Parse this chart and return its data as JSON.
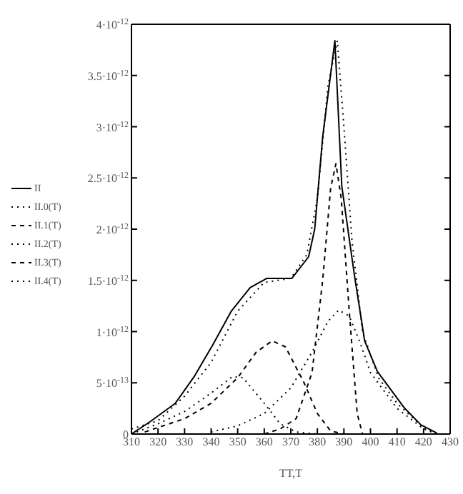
{
  "chart_data": {
    "type": "line",
    "xlabel": "TT,T",
    "legend": "left",
    "marker": "none",
    "xlim": [
      310,
      430
    ],
    "xticks": [
      310,
      320,
      330,
      340,
      350,
      360,
      370,
      380,
      390,
      400,
      410,
      420,
      430
    ],
    "ylim": [
      0,
      4e-12
    ],
    "yticks": [
      0,
      {
        "value": 5e-13,
        "label": "5·10$^{-13}$"
      },
      {
        "value": 1e-12,
        "label": "1·10$^{-12}$"
      },
      {
        "value": 1.5e-12,
        "label": "1.5·10$^{-12}$"
      },
      {
        "value": 2e-12,
        "label": "2·10$^{-12}$"
      },
      {
        "value": 2.5e-12,
        "label": "2.5·10$^{-12}$"
      },
      {
        "value": 3e-12,
        "label": "3·10$^{-12}$"
      },
      {
        "value": 3.5e-12,
        "label": "3.5·10$^{-12}$"
      },
      {
        "value": 4e-12,
        "label": "4·10$^{-12}$"
      }
    ],
    "series": [
      {
        "name": "II",
        "color": "#000000",
        "line_style": "solid",
        "x": [
          310,
          317,
          326.5,
          333.6,
          340.6,
          347.6,
          354.7,
          361,
          370.4,
          376.7,
          379,
          382,
          386.6,
          389.2,
          393.9,
          397.8,
          402.6,
          412.6,
          419,
          425
        ],
        "values": [
          0,
          1.2e-13,
          3e-13,
          5.6e-13,
          8.7e-13,
          1.2e-12,
          1.43e-12,
          1.52e-12,
          1.52e-12,
          1.73e-12,
          2e-12,
          2.9e-12,
          3.84e-12,
          2.42e-12,
          1.56e-12,
          9.1e-13,
          6.1e-13,
          2.6e-13,
          9e-14,
          1e-14
        ]
      },
      {
        "name": "II.0(T)",
        "color": "#000000",
        "line_style": "dotted",
        "x": [
          312,
          320,
          330,
          340,
          348,
          352,
          360,
          366,
          372,
          380
        ],
        "values": [
          2e-14,
          1e-13,
          2.2e-13,
          4e-13,
          5.6e-13,
          5.5e-13,
          3e-13,
          1e-13,
          2e-14,
          0
        ]
      },
      {
        "name": "II.1(T)",
        "color": "#000000",
        "line_style": "dashed",
        "x": [
          315,
          330,
          340,
          350,
          357,
          363,
          368,
          375,
          380,
          385,
          390
        ],
        "values": [
          2e-14,
          1.5e-13,
          3e-13,
          5.5e-13,
          8e-13,
          9.1e-13,
          8.5e-13,
          5e-13,
          2e-13,
          3e-14,
          0
        ]
      },
      {
        "name": "II.2(T)",
        "color": "#000000",
        "line_style": "dotted",
        "x": [
          340,
          350,
          360,
          370,
          378,
          384,
          388,
          392,
          396,
          400,
          410,
          420,
          425
        ],
        "values": [
          2e-14,
          8e-14,
          2e-13,
          4.5e-13,
          8e-13,
          1.1e-12,
          1.21e-12,
          1.15e-12,
          9e-13,
          6e-13,
          2.5e-13,
          5e-14,
          0
        ]
      },
      {
        "name": "II.3(T)",
        "color": "#000000",
        "line_style": "dashed",
        "x": [
          360,
          366,
          372,
          378,
          382,
          385,
          387,
          389,
          392,
          395,
          397
        ],
        "values": [
          0,
          5e-14,
          1.5e-13,
          6e-13,
          1.5e-12,
          2.4e-12,
          2.64e-12,
          2.3e-12,
          1.2e-12,
          2e-13,
          0
        ]
      },
      {
        "name": "II.4(T)",
        "color": "#000000",
        "line_style": "dotted",
        "x": [
          310,
          320,
          330,
          340,
          350,
          360,
          370,
          376,
          380,
          384,
          387.5,
          390,
          393,
          397,
          403,
          410,
          420,
          425
        ],
        "values": [
          5e-14,
          1.3e-13,
          3.7e-13,
          7e-13,
          1.2e-12,
          1.48e-12,
          1.52e-12,
          1.75e-12,
          2.3e-12,
          3.4e-12,
          3.84e-12,
          3e-12,
          1.9e-12,
          1e-12,
          5.5e-13,
          3e-13,
          6e-14,
          0
        ]
      }
    ]
  }
}
